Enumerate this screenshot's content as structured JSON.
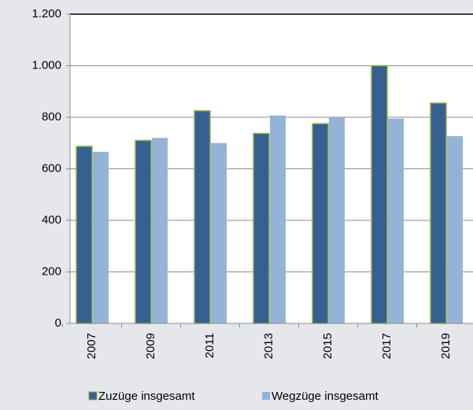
{
  "chart_data": {
    "type": "bar",
    "categories": [
      "2007",
      "2009",
      "2011",
      "2013",
      "2015",
      "2017",
      "2019"
    ],
    "series": [
      {
        "name": "Zuzüge insgesamt",
        "color": "#376092",
        "values": [
          687,
          710,
          825,
          737,
          775,
          1000,
          855
        ]
      },
      {
        "name": "Wegzüge insgesamt",
        "color": "#95b3d7",
        "values": [
          666,
          720,
          700,
          807,
          798,
          795,
          727
        ]
      }
    ],
    "ylim": [
      0,
      1200
    ],
    "yticks": [
      0,
      200,
      400,
      600,
      800,
      {
        "value": 1000,
        "label": "1.000"
      },
      {
        "value": 1200,
        "label": "1.200"
      }
    ],
    "grid": true
  }
}
